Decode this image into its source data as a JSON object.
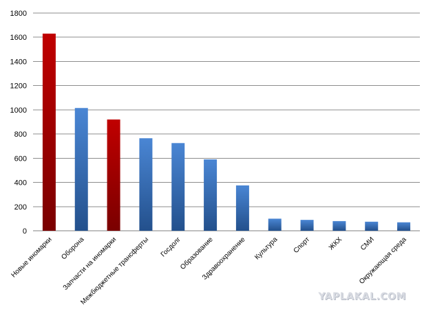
{
  "chart_data": {
    "type": "bar",
    "categories": [
      "Новые иномарки",
      "Оборона",
      "Запчасти на иномарки",
      "Межбюджетные трансферты",
      "Госдолг",
      "Образование",
      "Здравоохранение",
      "Культура",
      "Спорт",
      "ЖКХ",
      "СМИ",
      "Окружающая среда"
    ],
    "values": [
      1630,
      1015,
      920,
      765,
      725,
      590,
      375,
      100,
      90,
      80,
      75,
      70
    ],
    "highlighted": [
      true,
      false,
      true,
      false,
      false,
      false,
      false,
      false,
      false,
      false,
      false,
      false
    ],
    "ylim": [
      0,
      1800
    ],
    "yticks": [
      "0",
      "200",
      "400",
      "600",
      "800",
      "1000",
      "1200",
      "1400",
      "1600",
      "1800"
    ],
    "grid": true,
    "legend": "none",
    "title": "",
    "xlabel": "",
    "ylabel": ""
  },
  "colors": {
    "highlight": "#c00000",
    "highlight_dark": "#7a0000",
    "normal": "#4a86d4",
    "normal_dark": "#23508c",
    "grid": "#8c8c8c"
  },
  "watermark": "YAPLAKAL.COM"
}
